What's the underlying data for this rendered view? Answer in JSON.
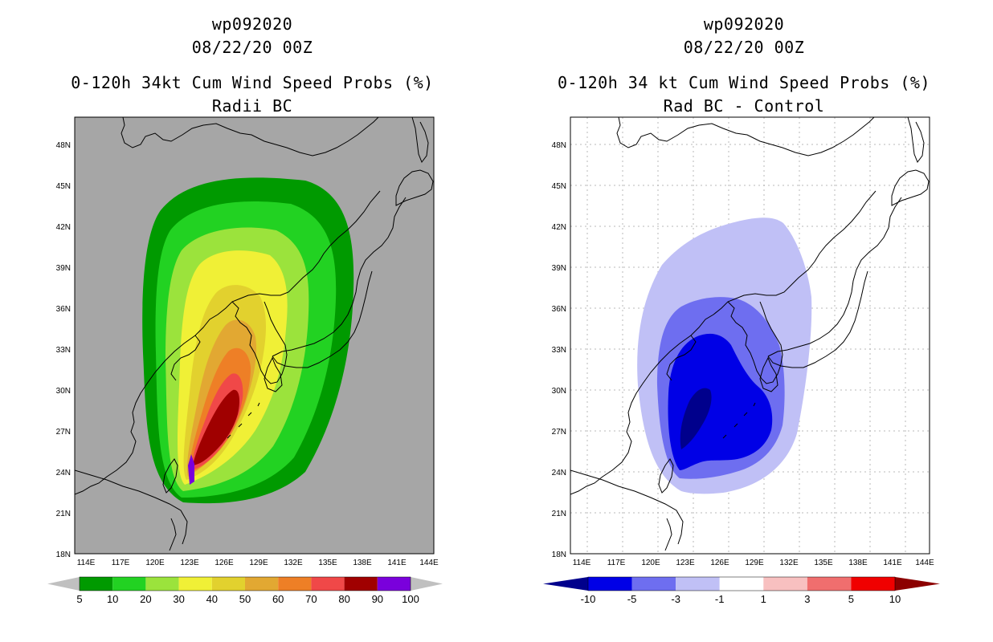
{
  "left": {
    "storm_id": "wp092020",
    "datetime": "08/22/20 00Z",
    "title_line1": "0-120h 34kt Cum Wind Speed Probs (%)",
    "title_line2": "Radii BC",
    "background_color": "#a6a6a6",
    "colorbar": {
      "colors": [
        "#009a00",
        "#22d222",
        "#9be33c",
        "#f0f036",
        "#e2d12e",
        "#e2a832",
        "#ee7f26",
        "#f04848",
        "#a00000",
        "#7a00dc"
      ],
      "labels": [
        "5",
        "10",
        "20",
        "30",
        "40",
        "50",
        "60",
        "70",
        "80",
        "90",
        "100"
      ],
      "under_color": "#c0c0c0",
      "over_color": "#c0c0c0"
    }
  },
  "right": {
    "storm_id": "wp092020",
    "datetime": "08/22/20 00Z",
    "title_line1": "0-120h 34 kt Cum Wind Speed Probs (%)",
    "title_line2": "Rad BC - Control",
    "background_color": "#ffffff",
    "colorbar": {
      "colors": [
        "#0000e6",
        "#6e6ef0",
        "#c0c0f6",
        "#ffffff",
        "#f8c0c0",
        "#f06e6e",
        "#f00000"
      ],
      "labels": [
        "-10",
        "-5",
        "-3",
        "-1",
        "1",
        "3",
        "5",
        "10"
      ],
      "under_color": "#00008c",
      "over_color": "#8c0000"
    }
  },
  "axes": {
    "lat_labels": [
      "48N",
      "45N",
      "42N",
      "39N",
      "36N",
      "33N",
      "30N",
      "27N",
      "24N",
      "21N",
      "18N"
    ],
    "lon_labels": [
      "114E",
      "117E",
      "120E",
      "123E",
      "126E",
      "129E",
      "132E",
      "135E",
      "138E",
      "141E",
      "144E"
    ]
  }
}
